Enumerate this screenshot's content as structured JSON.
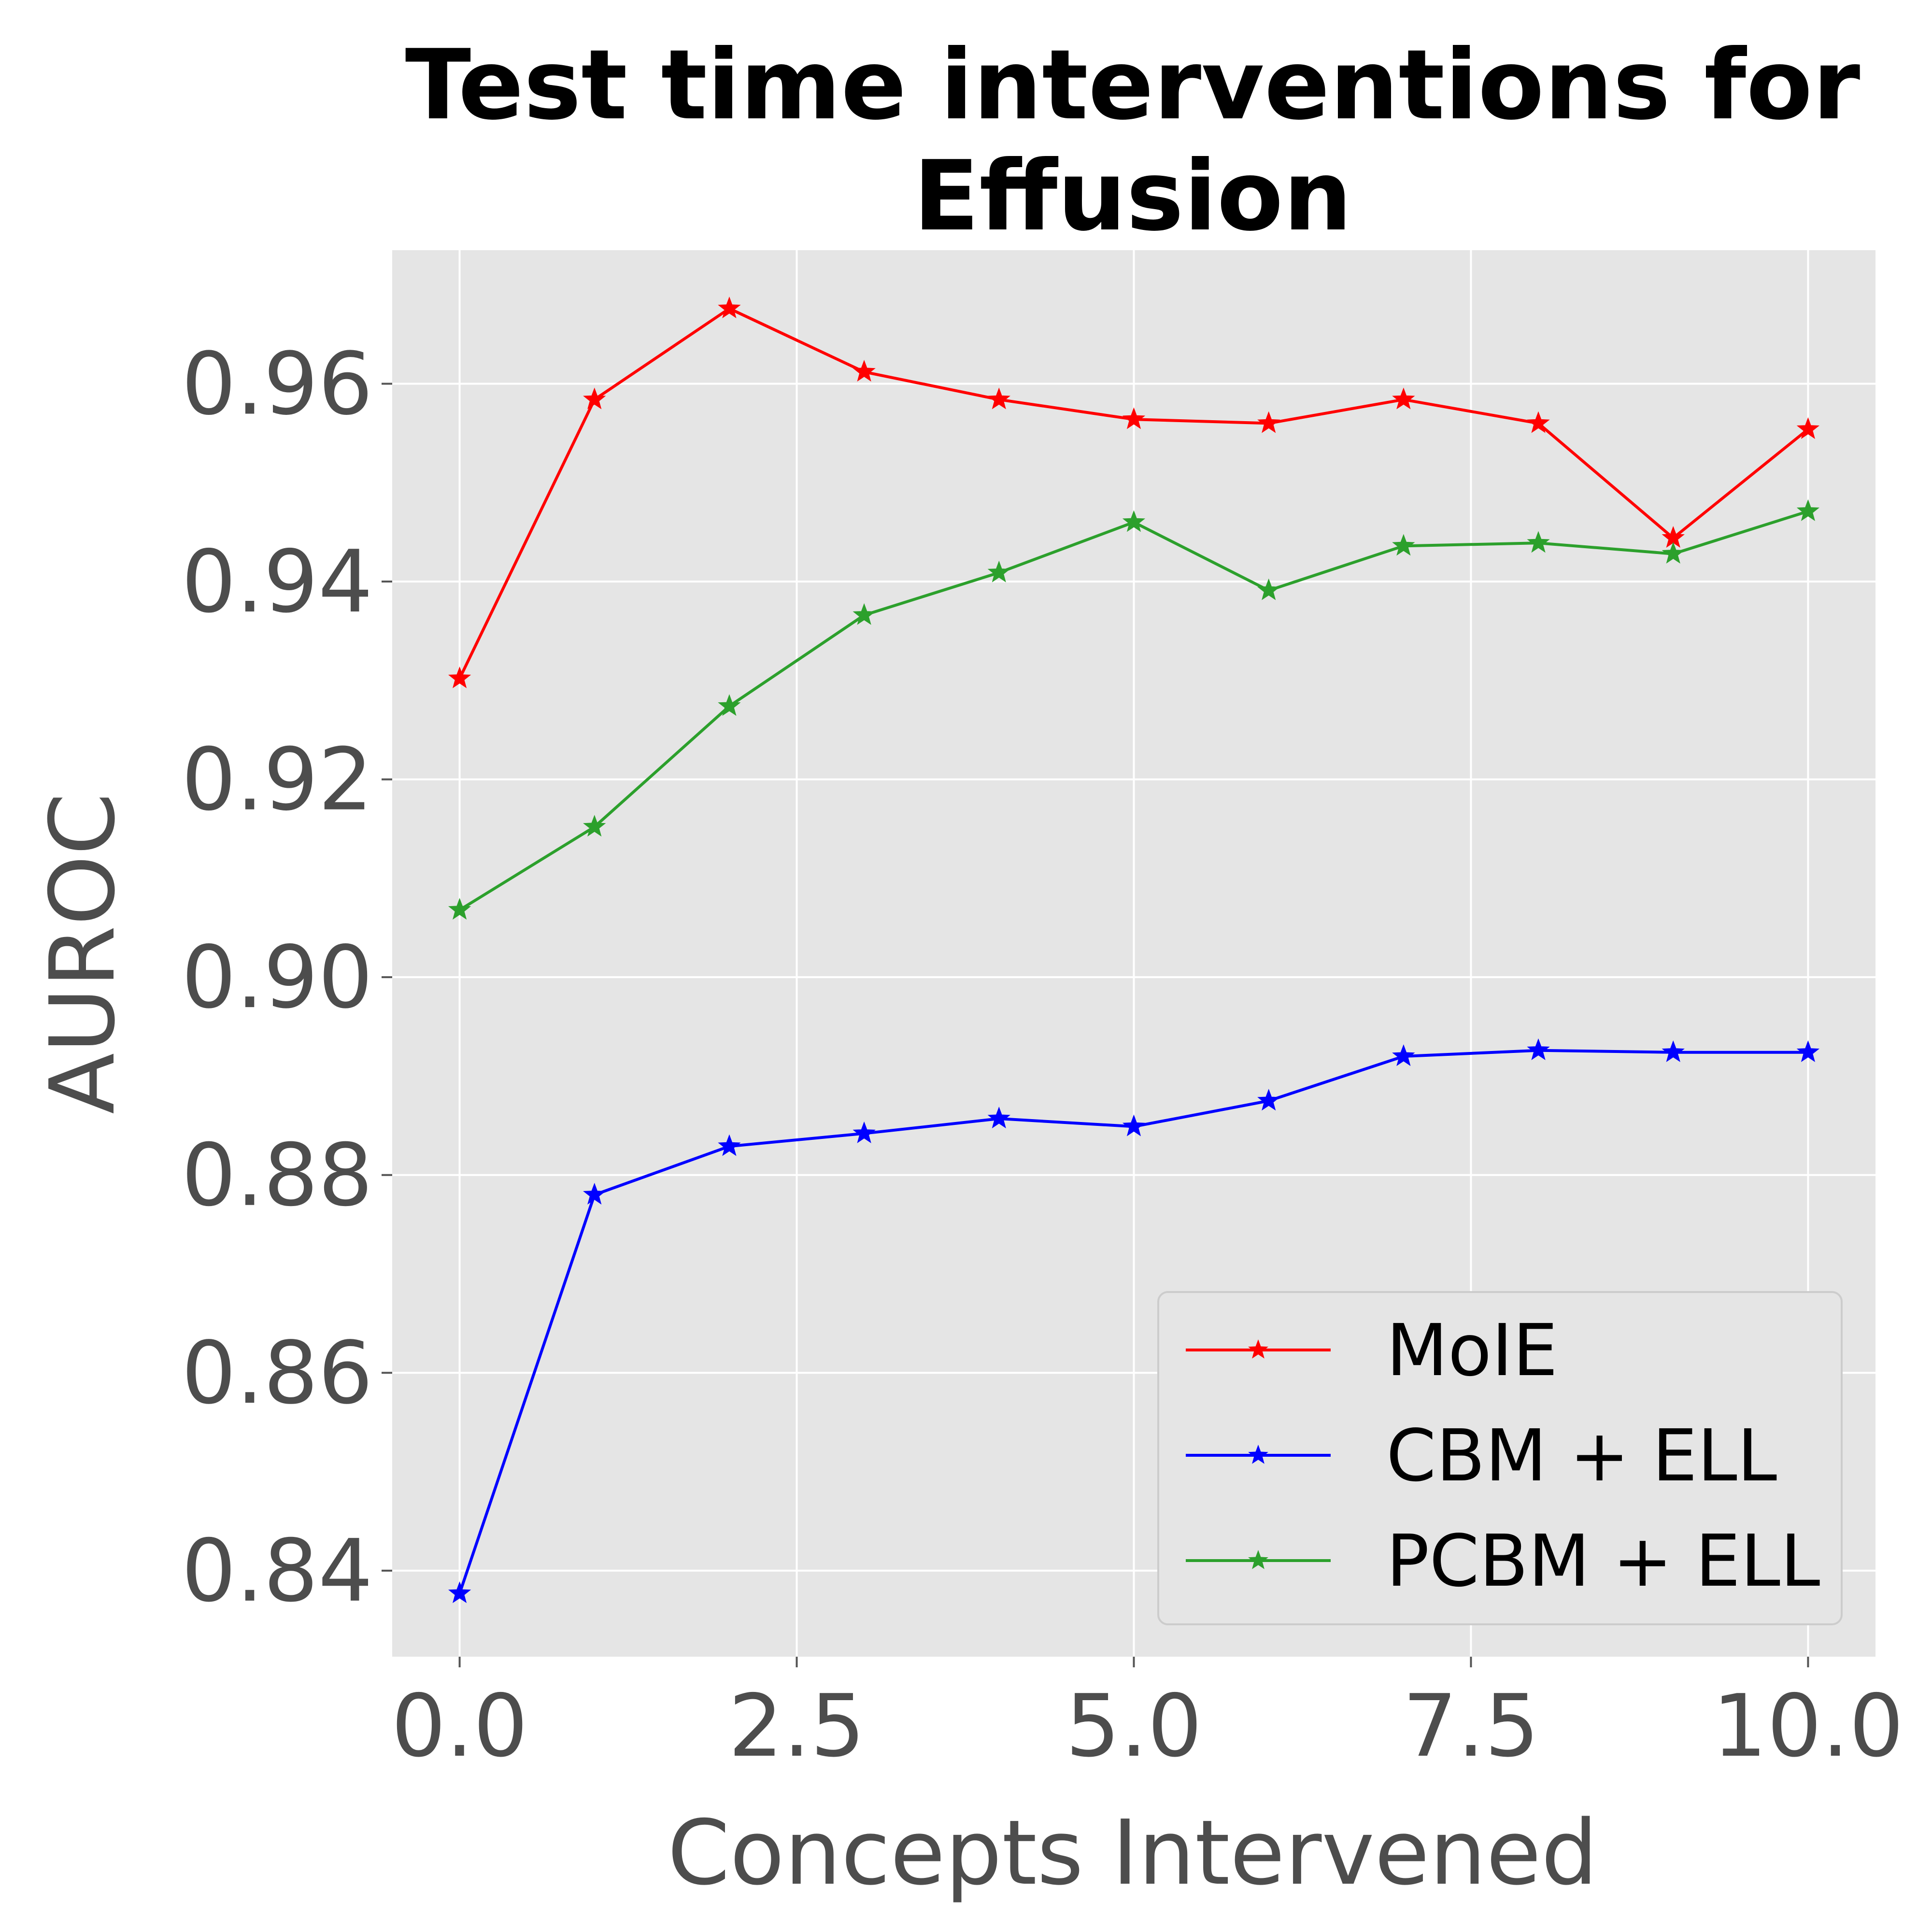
{
  "chart_data": {
    "type": "line",
    "title": "Test time interventions for\nEffusion",
    "title_lines": [
      "Test time interventions for",
      "Effusion"
    ],
    "xlabel": "Concepts Intervened",
    "ylabel": "AUROC",
    "xlim": [
      -0.5,
      10.5
    ],
    "ylim": [
      0.8313,
      0.9735
    ],
    "x_ticks": [
      0.0,
      2.5,
      5.0,
      7.5,
      10.0
    ],
    "x_tick_labels": [
      "0.0",
      "2.5",
      "5.0",
      "7.5",
      "10.0"
    ],
    "y_ticks": [
      0.84,
      0.86,
      0.88,
      0.9,
      0.92,
      0.94,
      0.96
    ],
    "y_tick_labels": [
      "0.84",
      "0.86",
      "0.88",
      "0.90",
      "0.92",
      "0.94",
      "0.96"
    ],
    "grid": true,
    "legend_position": "lower-right",
    "background": "#e5e5e5",
    "x": [
      0,
      1,
      2,
      3,
      4,
      5,
      6,
      7,
      8,
      9,
      10
    ],
    "series": [
      {
        "name": "MoIE",
        "color": "#ff0000",
        "marker": "star",
        "values": [
          0.9302,
          0.9584,
          0.9676,
          0.9612,
          0.9584,
          0.9564,
          0.956,
          0.9584,
          0.956,
          0.9444,
          0.9554
        ]
      },
      {
        "name": "CBM + ELL",
        "color": "#0000ff",
        "marker": "star",
        "values": [
          0.8377,
          0.878,
          0.8829,
          0.8842,
          0.8857,
          0.8849,
          0.8875,
          0.892,
          0.8926,
          0.8924,
          0.8924
        ]
      },
      {
        "name": "PCBM + ELL",
        "color": "#2ca02c",
        "marker": "star",
        "values": [
          0.9068,
          0.9152,
          0.9274,
          0.9366,
          0.9409,
          0.946,
          0.9391,
          0.9436,
          0.9439,
          0.9428,
          0.9471
        ]
      }
    ]
  }
}
